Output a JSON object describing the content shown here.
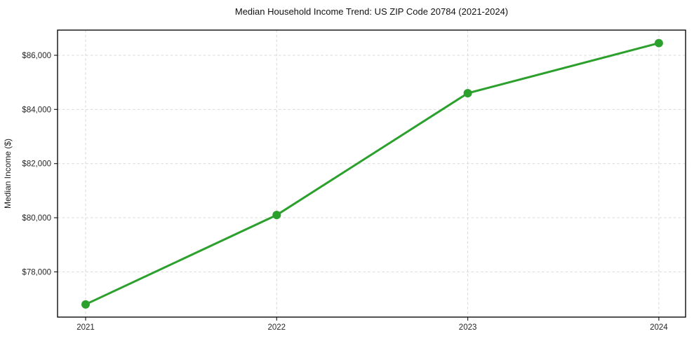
{
  "chart_data": {
    "type": "line",
    "title": "Median Household Income Trend: US ZIP Code 20784 (2021-2024)",
    "xlabel": "",
    "ylabel": "Median Income ($)",
    "x": [
      2021,
      2022,
      2023,
      2024
    ],
    "xticklabels": [
      "2021",
      "2022",
      "2023",
      "2024"
    ],
    "series": [
      {
        "name": "Median household income",
        "values": [
          76800,
          80100,
          84600,
          86450
        ],
        "color": "#2ca02c",
        "marker": "circle",
        "line_width": 3,
        "marker_radius": 6
      }
    ],
    "yticks": [
      78000,
      80000,
      82000,
      84000,
      86000
    ],
    "yticklabels": [
      "$78,000",
      "$80,000",
      "$82,000",
      "$84,000",
      "$86,000"
    ],
    "xlim": [
      2020.853,
      2024.14
    ],
    "ylim": [
      76330,
      86930
    ],
    "grid": true,
    "grid_style": "dashed",
    "grid_color": "#d9d9d9",
    "spine_color": "#0a0a0a",
    "tick_color": "#262626",
    "background_color": "#ffffff",
    "legend": false
  }
}
